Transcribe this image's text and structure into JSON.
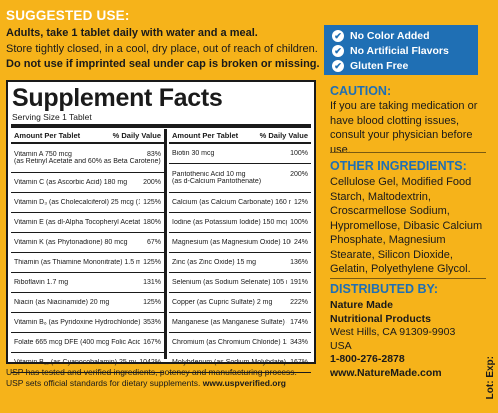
{
  "usage": {
    "heading": "SUGGESTED USE:",
    "lines": [
      "Adults, take 1 tablet daily with water and a meal.",
      "Store tightly closed, in a cool, dry place, out of reach of children.",
      "Do not use if imprinted seal under cap is broken or missing."
    ]
  },
  "facts": {
    "title": "Supplement Facts",
    "serving": "Serving Size 1 Tablet",
    "header_amount": "Amount Per Tablet",
    "header_dv": "% Daily Value",
    "left": [
      {
        "n1": "Vitamin A 750 mcg",
        "n2": "(as Retinyl Acetate and 60% as Beta Carotene)",
        "v": "83%"
      },
      {
        "n1": "Vitamin C (as Ascorbic Acid)  180 mg",
        "v": "200%"
      },
      {
        "n1": "Vitamin D₃ (as Cholecalciferol) 25 mcg (1000 IU)",
        "v": "125%"
      },
      {
        "n1": "Vitamin E (as dl-Alpha Tocopheryl Acetate) 27 mg",
        "v": "180%"
      },
      {
        "n1": "Vitamin K (as Phytonadione)  80 mcg",
        "v": "67%"
      },
      {
        "n1": "Thiamin (as Thiamine Mononitrate)  1.5 mg",
        "v": "125%"
      },
      {
        "n1": "Riboflavin  1.7 mg",
        "v": "131%"
      },
      {
        "n1": "Niacin (as Niacinamide)  20 mg",
        "v": "125%"
      },
      {
        "n1": "Vitamin B₆ (as Pyridoxine Hydrochloride)  6 mg",
        "v": "353%"
      },
      {
        "n1": "Folate 665 mcg DFE (400 mcg Folic Acid)",
        "v": "167%"
      },
      {
        "n1": "Vitamin B₁₂ (as Cyanocobalamin)  25 mcg",
        "v": "1042%"
      }
    ],
    "right": [
      {
        "n1": "Biotin  30 mcg",
        "v": "100%"
      },
      {
        "n1": "Pantothenic Acid  10 mg",
        "n2": "(as d-Calcium Pantothenate)",
        "v": "200%"
      },
      {
        "n1": "Calcium (as Calcium Carbonate)  160 mg",
        "v": "12%"
      },
      {
        "n1": "Iodine (as Potassium Iodide)  150 mcg",
        "v": "100%"
      },
      {
        "n1": "Magnesium (as Magnesium Oxide)  100 mg",
        "v": "24%"
      },
      {
        "n1": "Zinc (as Zinc Oxide)  15 mg",
        "v": "136%"
      },
      {
        "n1": "Selenium (as Sodium Selenate)  105 mcg",
        "v": "191%"
      },
      {
        "n1": "Copper (as Cupric Sulfate)  2 mg",
        "v": "222%"
      },
      {
        "n1": "Manganese (as Manganese Sulfate)  4 mg",
        "v": "174%"
      },
      {
        "n1": "Chromium (as Chromium Chloride)  120 mcg",
        "v": "343%"
      },
      {
        "n1": "Molybdenum (as Sodium Molybdate)  75 mcg",
        "v": "167%"
      }
    ]
  },
  "usp": {
    "line1": "USP has tested and verified ingredients, potency and manufacturing process.",
    "line2a": "USP sets official standards for dietary supplements.",
    "line2b": "www.uspverified.org"
  },
  "badges": [
    "No Color Added",
    "No Artificial Flavors",
    "Gluten Free"
  ],
  "caution": {
    "heading": "CAUTION:",
    "text": "If you are taking medication or have blood clotting issues, consult your physician before use."
  },
  "other": {
    "heading": "OTHER INGREDIENTS:",
    "text": "Cellulose Gel, Modified Food Starch, Maltodextrin, Croscarmellose Sodium, Hypromellose, Dibasic Calcium Phosphate, Magnesium Stearate, Silicon Dioxide, Gelatin, Polyethylene Glycol."
  },
  "distributor": {
    "heading": "DISTRIBUTED BY:",
    "name1": "Nature Made",
    "name2": "Nutritional Products",
    "city": "West Hills, CA 91309-9903",
    "country": "USA",
    "phone": "1-800-276-2878",
    "web": "www.NatureMade.com"
  },
  "lot_exp": "Lot: Exp:",
  "colors": {
    "background": "#f6b31a",
    "accent": "#1f6fb4"
  }
}
